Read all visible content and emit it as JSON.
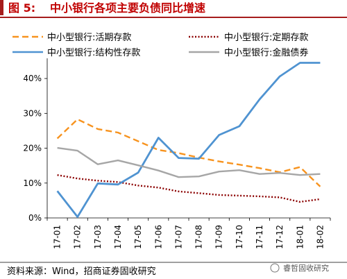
{
  "figure": {
    "label": "图 5:",
    "title": "中小银行各项主要负债同比增速",
    "source": "资料来源：Wind，招商证券固收研究",
    "watermark": "睿哲固收研究"
  },
  "colors": {
    "title_bar": "#a61c1c",
    "title_text": "#c00000",
    "series_demand": "#f7931e",
    "series_time": "#8b0000",
    "series_structured": "#4f93d1",
    "series_financial_bonds": "#a6a6a6"
  },
  "chart_data": {
    "type": "line",
    "title": "中小银行各项主要负债同比增速",
    "xlabel": "",
    "ylabel": "",
    "categories": [
      "17-01",
      "17-02",
      "17-03",
      "17-04",
      "17-05",
      "17-06",
      "17-07",
      "17-08",
      "17-09",
      "17-10",
      "17-11",
      "17-12",
      "18-01",
      "18-02"
    ],
    "ylim": [
      0,
      45
    ],
    "yticks": [
      0,
      10,
      20,
      30,
      40
    ],
    "ytick_labels": [
      "0%",
      "10%",
      "20%",
      "30%",
      "40%"
    ],
    "grid": false,
    "legend_position": "top",
    "series": [
      {
        "name": "中小型银行:活期存款",
        "style": "dashed",
        "color": "#f7931e",
        "values": [
          22.8,
          28.3,
          25.5,
          24.5,
          22.0,
          19.5,
          18.6,
          17.3,
          16.2,
          15.3,
          14.3,
          13.1,
          14.6,
          9.0
        ]
      },
      {
        "name": "中小型银行:定期存款",
        "style": "dotted",
        "color": "#8b0000",
        "values": [
          12.3,
          11.3,
          10.7,
          10.3,
          9.3,
          8.7,
          7.6,
          7.1,
          6.6,
          6.4,
          6.2,
          5.9,
          4.6,
          5.4
        ]
      },
      {
        "name": "中小型银行:结构性存款",
        "style": "solid",
        "color": "#4f93d1",
        "values": [
          7.7,
          0.3,
          9.9,
          9.6,
          13.0,
          23.0,
          17.2,
          17.0,
          23.8,
          26.3,
          34.0,
          40.6,
          44.5,
          44.5
        ]
      },
      {
        "name": "中小型银行:金融债券",
        "style": "solid",
        "color": "#a6a6a6",
        "values": [
          20.1,
          19.3,
          15.4,
          16.5,
          15.1,
          13.6,
          11.7,
          11.9,
          13.3,
          13.7,
          12.6,
          12.9,
          12.3,
          12.6
        ]
      }
    ]
  }
}
